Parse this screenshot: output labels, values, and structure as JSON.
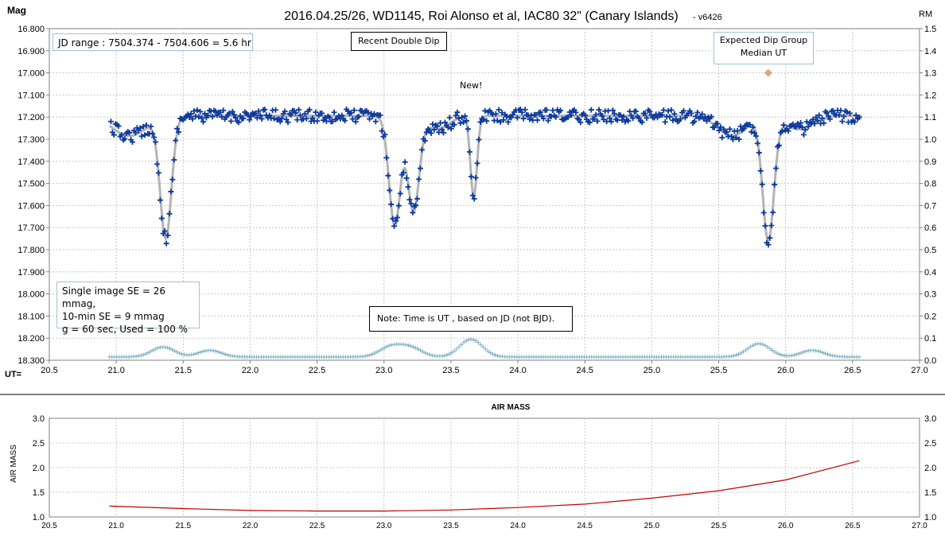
{
  "colors": {
    "data_marker": "#0d3a9e",
    "model_curve": "#b4b4b4",
    "reference_stars": "#7fb2c4",
    "expected_dip_marker": "#e2a577",
    "airmass_line": "#c00000",
    "grid": "#c8c8c8"
  },
  "chart_data": [
    {
      "type": "scatter",
      "title": "2016.04.25/26,  WD1145, Roi Alonso  et al, IAC80 32\" (Canary Islands)",
      "title_suffix": "- v6426",
      "ylabel_left": "Mag",
      "ylabel_right": "RM",
      "xlabel": "UT=",
      "xlim": [
        20.5,
        27.0
      ],
      "ylim_left": [
        16.8,
        18.3
      ],
      "ylim_right": [
        0.0,
        1.5
      ],
      "left_axis_inverted": true,
      "grid": true,
      "x_ticks": [
        "20.5",
        "21.0",
        "21.5",
        "22.0",
        "22.5",
        "23.0",
        "23.5",
        "24.0",
        "24.5",
        "25.0",
        "25.5",
        "26.0",
        "26.5",
        "27.0"
      ],
      "y_ticks_left": [
        "16.800",
        "16.900",
        "17.000",
        "17.100",
        "17.200",
        "17.300",
        "17.400",
        "17.500",
        "17.600",
        "17.700",
        "17.800",
        "17.900",
        "18.000",
        "18.100",
        "18.200",
        "18.300"
      ],
      "y_ticks_right": [
        "1.5",
        "1.4",
        "1.3",
        "1.2",
        "1.1",
        "1.0",
        "0.9",
        "0.8",
        "0.7",
        "0.6",
        "0.5",
        "0.4",
        "0.3",
        "0.2",
        "0.1",
        "0.0"
      ],
      "baseline_mag": 17.195,
      "dips": [
        {
          "center_ut": 21.37,
          "min_mag": 17.74
        },
        {
          "center_ut": 23.08,
          "min_mag": 17.69
        },
        {
          "center_ut": 23.22,
          "min_mag": 17.62
        },
        {
          "center_ut": 23.67,
          "min_mag": 17.56
        },
        {
          "center_ut": 25.87,
          "min_mag": 17.75
        }
      ],
      "expected_dip_group": {
        "ut": 25.87,
        "rm": 1.3
      },
      "series": [
        {
          "name": "",
          "kind": "observations"
        },
        {
          "name": "",
          "kind": "model"
        },
        {
          "name": "",
          "kind": "reference"
        }
      ]
    },
    {
      "type": "line",
      "title": "AIR MASS",
      "ylabel": "AIR MASS",
      "xlim": [
        20.5,
        27.0
      ],
      "ylim": [
        1.0,
        3.0
      ],
      "grid": true,
      "x_ticks": [
        "20.5",
        "21.0",
        "21.5",
        "22.0",
        "22.5",
        "23.0",
        "23.5",
        "24.0",
        "24.5",
        "25.0",
        "25.5",
        "26.0",
        "26.5",
        "27.0"
      ],
      "y_ticks": [
        "3.0",
        "2.5",
        "2.0",
        "1.5",
        "1.0"
      ],
      "x": [
        20.95,
        21.5,
        22.0,
        22.5,
        23.0,
        23.5,
        24.0,
        24.5,
        25.0,
        25.5,
        26.0,
        26.55
      ],
      "values": [
        1.22,
        1.17,
        1.13,
        1.12,
        1.12,
        1.14,
        1.19,
        1.26,
        1.38,
        1.53,
        1.75,
        2.14
      ]
    }
  ],
  "annotations": {
    "jd_range": "JD range  : 7504.374  - 7504.606  = 5.6 hr",
    "recent_double_dip": "Recent Double Dip",
    "expected_dip_line1": "Expected Dip Group",
    "expected_dip_line2": "Median UT",
    "new_label": "New!",
    "se_line1": "Single image SE = 26 mmag,",
    "se_line2": "10-min SE = 9 mmag",
    "se_line3": "g = 60 sec, Used = 100 %",
    "time_note": "Note: Time is UT , based on JD (not BJD)."
  }
}
